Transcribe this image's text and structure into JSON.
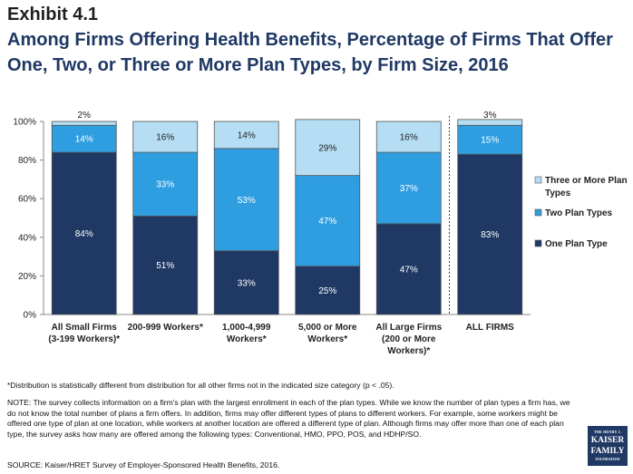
{
  "exhibit": "Exhibit 4.1",
  "title": "Among Firms Offering Health Benefits, Percentage of Firms That Offer One, Two, or Three or More Plan Types, by Firm Size, 2016",
  "colors": {
    "one": "#1f3864",
    "two": "#2e9ee0",
    "three": "#b5ddf3",
    "border": "#555555"
  },
  "chart_data": {
    "type": "bar",
    "stacked": true,
    "categories": [
      [
        "All Small Firms",
        "(3-199 Workers)*"
      ],
      [
        "200-999 Workers*"
      ],
      [
        "1,000-4,999",
        "Workers*"
      ],
      [
        "5,000 or More",
        "Workers*"
      ],
      [
        "All Large Firms",
        "(200 or More",
        "Workers)*"
      ],
      [
        "ALL FIRMS"
      ]
    ],
    "series": [
      {
        "name": "One Plan Type",
        "values": [
          84,
          51,
          33,
          25,
          47,
          83
        ]
      },
      {
        "name": "Two Plan Types",
        "values": [
          14,
          33,
          53,
          47,
          37,
          15
        ]
      },
      {
        "name": "Three or More Plan Types",
        "values": [
          2,
          16,
          14,
          29,
          16,
          3
        ]
      }
    ],
    "y_ticks": [
      "0%",
      "20%",
      "40%",
      "60%",
      "80%",
      "100%"
    ],
    "ylim": [
      0,
      100
    ],
    "legend": [
      "Three or More Plan",
      "Types"
    ],
    "legend_two": "Two Plan Types",
    "legend_one": "One Plan Type",
    "legend_position": "right",
    "separator_before_last": true
  },
  "footnotes": {
    "significance": "*Distribution is statistically different from distribution for all other firms not in the indicated size category (p < .05).",
    "note": "NOTE:  The survey collects information on a firm's plan with the largest enrollment in each of the plan types. While we know the number of plan types a firm has, we do not know the total number of plans a firm offers. In addition, firms may offer different types of plans to different workers. For example, some workers might be offered one type of plan at one location, while workers at another location are offered a different type of plan. Although firms may offer more than one of each plan type, the survey asks how many are offered among the following types: Conventional, HMO, PPO, POS, and HDHP/SO.",
    "source": "SOURCE: Kaiser/HRET Survey of Employer-Sponsored Health Benefits, 2016."
  },
  "logo": {
    "line1": "THE HENRY J.",
    "line2a": "KAISER",
    "line2b": "FAMILY",
    "line3": "FOUNDATION"
  }
}
